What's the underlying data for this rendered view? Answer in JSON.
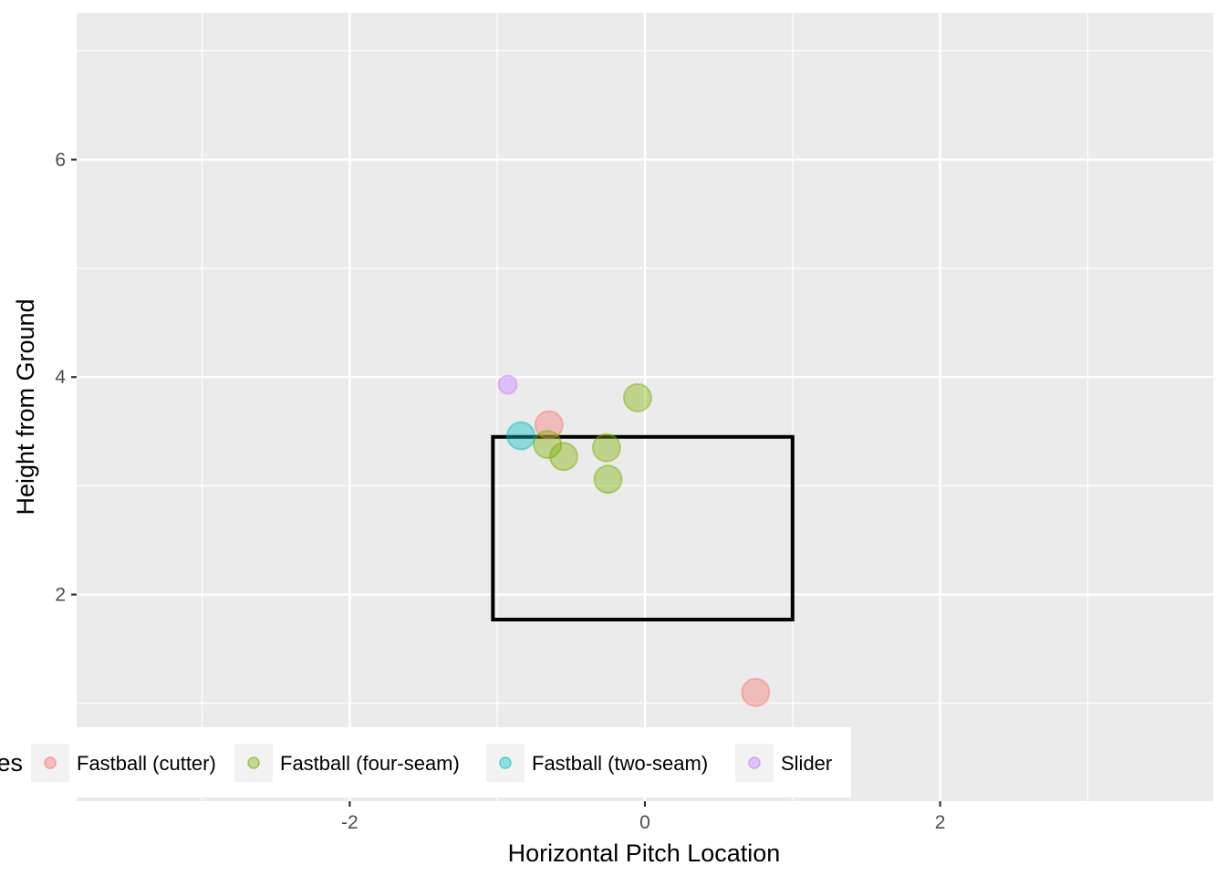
{
  "chart_data": {
    "type": "scatter",
    "title": "",
    "xlabel": "Horizontal Pitch Location",
    "ylabel": "Height from Ground",
    "xlim": [
      -3.85,
      3.85
    ],
    "ylim": [
      0.1,
      7.35
    ],
    "x_ticks": [
      -2,
      0,
      2
    ],
    "x_tick_labels": [
      "-2",
      "0",
      "2"
    ],
    "y_ticks": [
      2,
      4,
      6
    ],
    "y_tick_labels": [
      "2",
      "4",
      "6"
    ],
    "grid": true,
    "legend": {
      "title": "es",
      "position": "bottom",
      "entries": [
        "Fastball (cutter)",
        "Fastball (four-seam)",
        "Fastball (two-seam)",
        "Slider"
      ]
    },
    "strike_zone": {
      "x": [
        -1.03,
        1.0
      ],
      "y": [
        1.77,
        3.45
      ]
    },
    "series": [
      {
        "name": "Fastball (cutter)",
        "color": "#F8766D",
        "size": "large",
        "points": [
          {
            "x": -0.65,
            "y": 3.56
          },
          {
            "x": 0.75,
            "y": 1.1
          }
        ]
      },
      {
        "name": "Fastball (four-seam)",
        "color": "#7CAE00",
        "size": "large",
        "points": [
          {
            "x": -0.05,
            "y": 3.81
          },
          {
            "x": -0.66,
            "y": 3.38
          },
          {
            "x": -0.55,
            "y": 3.27
          },
          {
            "x": -0.26,
            "y": 3.35
          },
          {
            "x": -0.25,
            "y": 3.06
          }
        ]
      },
      {
        "name": "Fastball (two-seam)",
        "color": "#00BFC4",
        "size": "large",
        "points": [
          {
            "x": -0.84,
            "y": 3.46
          }
        ]
      },
      {
        "name": "Slider",
        "color": "#C77CFF",
        "size": "small",
        "points": [
          {
            "x": -0.93,
            "y": 3.93
          }
        ]
      }
    ]
  }
}
